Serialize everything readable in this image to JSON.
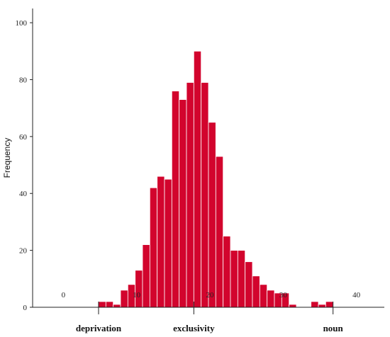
{
  "chart_data": {
    "type": "bar",
    "title": "",
    "xlabel": "",
    "ylabel": "Frequency",
    "xlim": [
      -4,
      44
    ],
    "ylim": [
      0,
      105
    ],
    "x_ticks": [
      0,
      10,
      20,
      30,
      40
    ],
    "y_ticks": [
      0,
      20,
      40,
      60,
      80,
      100
    ],
    "bin_width": 1,
    "bins": [
      {
        "x": 5,
        "count": 2
      },
      {
        "x": 6,
        "count": 2
      },
      {
        "x": 7,
        "count": 1
      },
      {
        "x": 8,
        "count": 6
      },
      {
        "x": 9,
        "count": 8
      },
      {
        "x": 10,
        "count": 13
      },
      {
        "x": 11,
        "count": 22
      },
      {
        "x": 12,
        "count": 42
      },
      {
        "x": 13,
        "count": 46
      },
      {
        "x": 14,
        "count": 45
      },
      {
        "x": 15,
        "count": 76
      },
      {
        "x": 16,
        "count": 73
      },
      {
        "x": 17,
        "count": 79
      },
      {
        "x": 18,
        "count": 90
      },
      {
        "x": 19,
        "count": 79
      },
      {
        "x": 20,
        "count": 65
      },
      {
        "x": 21,
        "count": 53
      },
      {
        "x": 22,
        "count": 25
      },
      {
        "x": 23,
        "count": 20
      },
      {
        "x": 24,
        "count": 20
      },
      {
        "x": 25,
        "count": 16
      },
      {
        "x": 26,
        "count": 11
      },
      {
        "x": 27,
        "count": 8
      },
      {
        "x": 28,
        "count": 6
      },
      {
        "x": 29,
        "count": 5
      },
      {
        "x": 30,
        "count": 5
      },
      {
        "x": 31,
        "count": 1
      },
      {
        "x": 34,
        "count": 2
      },
      {
        "x": 35,
        "count": 1
      },
      {
        "x": 36,
        "count": 2
      }
    ],
    "annotations": [
      {
        "text": "deprivation",
        "x": 5
      },
      {
        "text": "exclusivity",
        "x": 18
      },
      {
        "text": "noun",
        "x": 37
      }
    ],
    "bar_color": "#d2042d",
    "grid": false
  }
}
